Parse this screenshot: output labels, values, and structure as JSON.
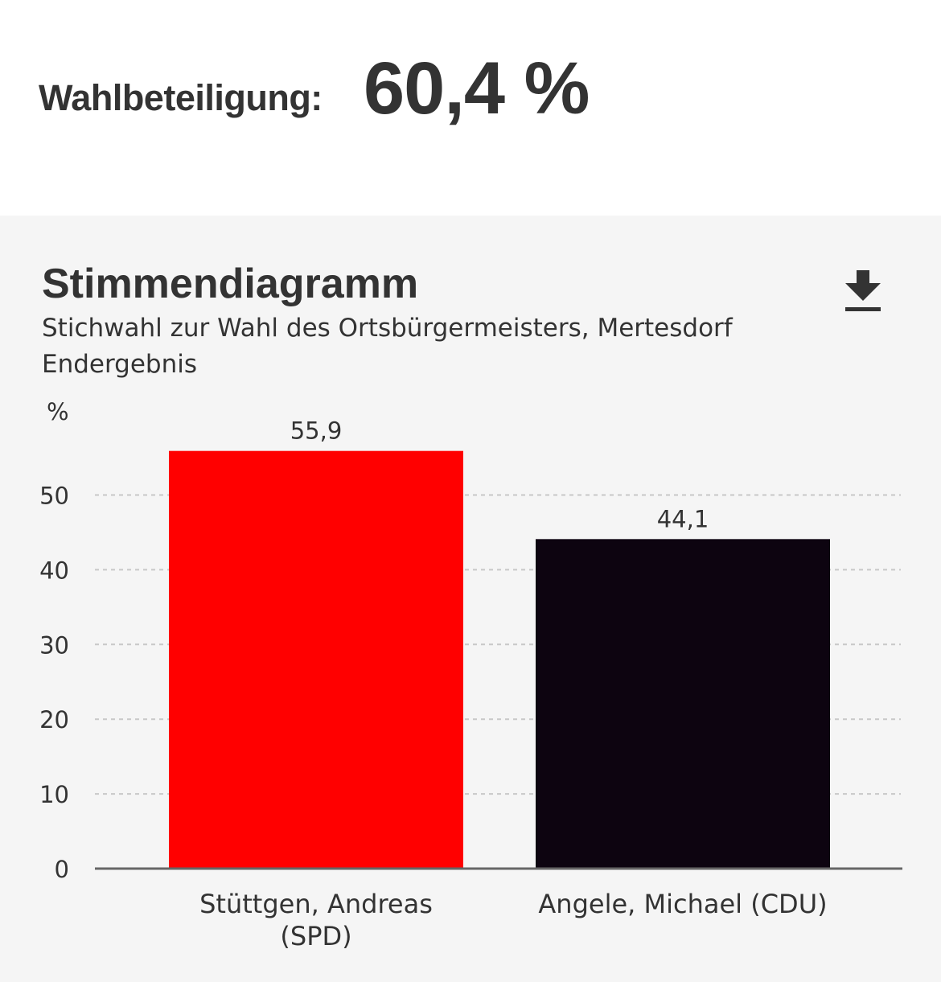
{
  "turnout": {
    "label": "Wahlbeteiligung:",
    "value": "60,4 %"
  },
  "chart_panel": {
    "title": "Stimmendiagramm",
    "subtitle_line1": "Stichwahl zur Wahl des Ortsbürgermeisters, Mertesdorf",
    "subtitle_line2": "Endergebnis",
    "download_icon": "download-icon"
  },
  "chart_data": {
    "type": "bar",
    "title": "Stimmendiagramm",
    "ylabel": "%",
    "xlabel": "",
    "ylim": [
      0,
      55
    ],
    "yticks": [
      0,
      10,
      20,
      30,
      40,
      50
    ],
    "grid": true,
    "categories": [
      [
        "Stüttgen, Andreas",
        "(SPD)"
      ],
      [
        "Angele, Michael (CDU)"
      ]
    ],
    "values": [
      55.9,
      44.1
    ],
    "value_labels": [
      "55,9",
      "44,1"
    ],
    "colors": [
      "#ff0000",
      "#0d0410"
    ]
  }
}
